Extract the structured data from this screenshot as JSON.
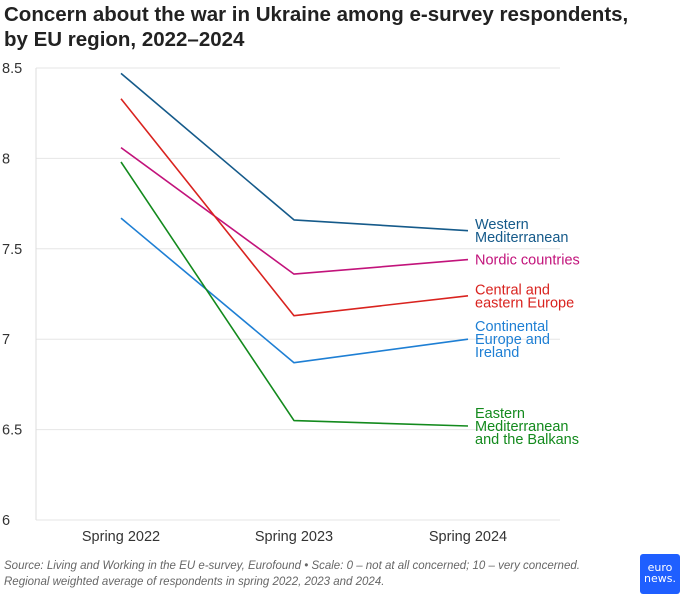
{
  "header": {
    "title_line1": "Concern about the war in Ukraine among e-survey respondents,",
    "title_line2": "by EU region, 2022–2024"
  },
  "footer": {
    "source_line1": "Source: Living and Working in the EU e-survey, Eurofound • Scale: 0 – not at all concerned; 10 – very concerned.",
    "source_line2": "Regional weighted average of respondents in spring 2022, 2023 and 2024."
  },
  "logo": {
    "line1": "euro",
    "line2": "news."
  },
  "chart_data": {
    "type": "line",
    "categories": [
      "Spring 2022",
      "Spring 2023",
      "Spring 2024"
    ],
    "ylim": [
      6,
      8.5
    ],
    "yticks": [
      "6",
      "6.5",
      "7",
      "7.5",
      "8",
      "8.5"
    ],
    "grid": true,
    "legend": "right",
    "series": [
      {
        "name": "Western Mediterranean",
        "label_lines": [
          "Western",
          "Mediterranean"
        ],
        "color": "#155a8a",
        "values": [
          8.47,
          7.66,
          7.6
        ]
      },
      {
        "name": "Nordic countries",
        "label_lines": [
          "Nordic countries"
        ],
        "color": "#c2137b",
        "values": [
          8.06,
          7.36,
          7.44
        ]
      },
      {
        "name": "Central and eastern Europe",
        "label_lines": [
          "Central and",
          "eastern Europe"
        ],
        "color": "#d9231f",
        "values": [
          8.33,
          7.13,
          7.24
        ]
      },
      {
        "name": "Continental Europe and Ireland",
        "label_lines": [
          "Continental",
          "Europe and",
          "Ireland"
        ],
        "color": "#1e7fd4",
        "values": [
          7.67,
          6.87,
          7.0
        ]
      },
      {
        "name": "Eastern Mediterranean and the Balkans",
        "label_lines": [
          "Eastern",
          "Mediterranean",
          "and the Balkans"
        ],
        "color": "#138a1d",
        "values": [
          7.98,
          6.55,
          6.52
        ]
      }
    ]
  }
}
